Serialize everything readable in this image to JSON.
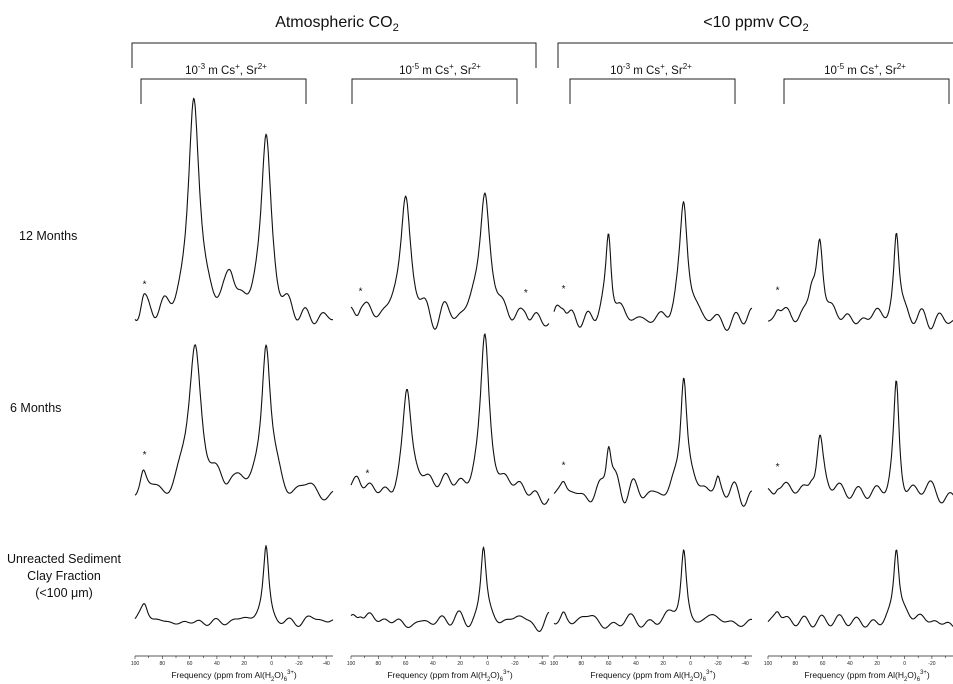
{
  "chart_data": {
    "type": "line",
    "groups": [
      {
        "label_main": "Atmospheric CO",
        "label_sub": "2"
      },
      {
        "label_main": "<10 ppmv CO",
        "label_sub": "2"
      }
    ],
    "columns": [
      {
        "exp": "-3",
        "cations": " m Cs",
        "sup1": "+",
        "mid": ", Sr",
        "sup2": "2+"
      },
      {
        "exp": "-5",
        "cations": " m Cs",
        "sup1": "+",
        "mid": ", Sr",
        "sup2": "2+"
      },
      {
        "exp": "-3",
        "cations": " m Cs",
        "sup1": "+",
        "mid": ", Sr",
        "sup2": "2+"
      },
      {
        "exp": "-5",
        "cations": " m Cs",
        "sup1": "+",
        "mid": ", Sr",
        "sup2": "2+"
      }
    ],
    "rows": [
      {
        "label_lines": [
          "12 Months"
        ]
      },
      {
        "label_lines": [
          "6 Months"
        ]
      },
      {
        "label_lines": [
          "Unreacted Sediment",
          "Clay Fraction",
          "(<100 μm)"
        ]
      }
    ],
    "x_axis": {
      "xlim": [
        100,
        -45
      ],
      "ticks": [
        "100",
        "80",
        "60",
        "40",
        "20",
        "0",
        "-20",
        "-40"
      ],
      "tick_values": [
        100,
        80,
        60,
        40,
        20,
        0,
        -20,
        -40
      ],
      "label_main": "Frequency (ppm from Al(H",
      "label_sub1": "2",
      "label_mid": "O)",
      "label_sub2": "6",
      "label_sup": "3+",
      "label_end": ")"
    },
    "spinning_sideband_marker": "*",
    "panels": [
      {
        "row": 0,
        "col": 0,
        "peaks": [
          [
            94,
            0.08,
            3
          ],
          [
            57,
            1.0,
            5
          ],
          [
            30,
            0.18,
            5
          ],
          [
            4,
            0.84,
            4.5
          ]
        ],
        "stars": [
          93
        ]
      },
      {
        "row": 0,
        "col": 1,
        "peaks": [
          [
            93,
            0.05,
            3
          ],
          [
            60,
            0.58,
            4.5
          ],
          [
            2,
            0.58,
            4.5
          ],
          [
            -28,
            0.04,
            3
          ]
        ],
        "stars": [
          93,
          -28
        ]
      },
      {
        "row": 0,
        "col": 2,
        "peaks": [
          [
            93,
            0.07,
            3
          ],
          [
            60,
            0.4,
            2.5
          ],
          [
            5,
            0.52,
            3.5
          ]
        ],
        "stars": [
          93
        ]
      },
      {
        "row": 0,
        "col": 3,
        "peaks": [
          [
            93,
            0.06,
            3
          ],
          [
            62,
            0.36,
            3
          ],
          [
            68,
            0.1,
            3
          ],
          [
            6,
            0.4,
            2.5
          ]
        ],
        "stars": [
          93
        ]
      },
      {
        "row": 1,
        "col": 0,
        "peaks": [
          [
            94,
            0.12,
            3
          ],
          [
            56,
            0.72,
            5.5
          ],
          [
            30,
            0.1,
            5
          ],
          [
            4,
            0.78,
            4
          ]
        ],
        "stars": [
          93
        ]
      },
      {
        "row": 1,
        "col": 1,
        "peaks": [
          [
            95,
            0.08,
            4
          ],
          [
            59,
            0.52,
            4
          ],
          [
            30,
            0.08,
            6
          ],
          [
            2,
            0.82,
            4
          ]
        ],
        "stars": [
          88
        ]
      },
      {
        "row": 1,
        "col": 2,
        "peaks": [
          [
            93,
            0.07,
            3
          ],
          [
            60,
            0.28,
            2.5
          ],
          [
            5,
            0.64,
            3
          ],
          [
            -20,
            0.06,
            2
          ]
        ],
        "stars": [
          93
        ]
      },
      {
        "row": 1,
        "col": 3,
        "peaks": [
          [
            93,
            0.06,
            3
          ],
          [
            62,
            0.28,
            3
          ],
          [
            68,
            0.08,
            3
          ],
          [
            6,
            0.56,
            2.5
          ]
        ],
        "stars": [
          93
        ]
      },
      {
        "row": 2,
        "col": 0,
        "peaks": [
          [
            93,
            0.08,
            3
          ],
          [
            4,
            0.42,
            2.5
          ]
        ],
        "stars": []
      },
      {
        "row": 2,
        "col": 1,
        "peaks": [
          [
            93,
            0.07,
            3
          ],
          [
            3,
            0.42,
            2.5
          ]
        ],
        "stars": []
      },
      {
        "row": 2,
        "col": 2,
        "peaks": [
          [
            93,
            0.07,
            3
          ],
          [
            5,
            0.42,
            2.5
          ]
        ],
        "stars": []
      },
      {
        "row": 2,
        "col": 3,
        "peaks": [
          [
            93,
            0.07,
            3
          ],
          [
            6,
            0.42,
            2.5
          ]
        ],
        "stars": []
      }
    ]
  }
}
